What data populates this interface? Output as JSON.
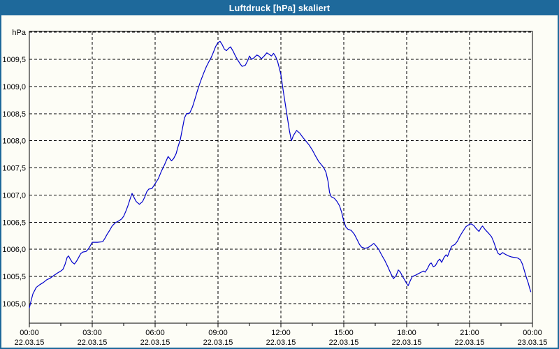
{
  "window": {
    "title": "Luftdruck [hPa] skaliert"
  },
  "colors": {
    "frame": "#1E699B",
    "titlebar_bg": "#1E699B",
    "title_text": "#FFFFFF",
    "panel_bg": "#FDFDF6",
    "line": "#0000CC",
    "grid": "#000000",
    "label_text": "#000000"
  },
  "chart_data": {
    "type": "line",
    "title": "Luftdruck [hPa] skaliert",
    "ylabel": "hPa",
    "unit_label": "hPa",
    "grid": true,
    "legend": "none",
    "ylim": [
      1004.64,
      1010.0
    ],
    "xlim_hours": [
      0,
      24
    ],
    "y_ticks": [
      {
        "v": 1010.0,
        "label": "hPa"
      },
      {
        "v": 1009.5,
        "label": "1009,5"
      },
      {
        "v": 1009.0,
        "label": "1009,0"
      },
      {
        "v": 1008.5,
        "label": "1008,5"
      },
      {
        "v": 1008.0,
        "label": "1008,0"
      },
      {
        "v": 1007.5,
        "label": "1007,5"
      },
      {
        "v": 1007.0,
        "label": "1007,0"
      },
      {
        "v": 1006.5,
        "label": "1006,5"
      },
      {
        "v": 1006.0,
        "label": "1006,0"
      },
      {
        "v": 1005.5,
        "label": "1005,5"
      },
      {
        "v": 1005.0,
        "label": "1005,0"
      }
    ],
    "x_ticks": [
      {
        "h": 0,
        "time": "00:00",
        "date": "22.03.15"
      },
      {
        "h": 3,
        "time": "03:00",
        "date": "22.03.15"
      },
      {
        "h": 6,
        "time": "06:00",
        "date": "22.03.15"
      },
      {
        "h": 9,
        "time": "09:00",
        "date": "22.03.15"
      },
      {
        "h": 12,
        "time": "12:00",
        "date": "22.03.15"
      },
      {
        "h": 15,
        "time": "15:00",
        "date": "22.03.15"
      },
      {
        "h": 18,
        "time": "18:00",
        "date": "22.03.15"
      },
      {
        "h": 21,
        "time": "21:00",
        "date": "22.03.15"
      },
      {
        "h": 24,
        "time": "00:00",
        "date": "23.03.15"
      }
    ],
    "minor_tick_hours": [
      1.5,
      4.5,
      7.5,
      10.5,
      13.5,
      16.5,
      19.5,
      22.5
    ],
    "series": [
      {
        "name": "Luftdruck",
        "points": [
          [
            0.0,
            1004.92
          ],
          [
            0.08,
            1005.05
          ],
          [
            0.17,
            1005.18
          ],
          [
            0.33,
            1005.3
          ],
          [
            0.5,
            1005.35
          ],
          [
            0.67,
            1005.39
          ],
          [
            0.83,
            1005.44
          ],
          [
            1.0,
            1005.47
          ],
          [
            1.17,
            1005.52
          ],
          [
            1.33,
            1005.56
          ],
          [
            1.5,
            1005.6
          ],
          [
            1.6,
            1005.63
          ],
          [
            1.7,
            1005.72
          ],
          [
            1.8,
            1005.85
          ],
          [
            1.87,
            1005.88
          ],
          [
            1.95,
            1005.82
          ],
          [
            2.05,
            1005.76
          ],
          [
            2.15,
            1005.73
          ],
          [
            2.25,
            1005.78
          ],
          [
            2.35,
            1005.85
          ],
          [
            2.45,
            1005.92
          ],
          [
            2.55,
            1005.95
          ],
          [
            2.7,
            1005.96
          ],
          [
            2.8,
            1006.0
          ],
          [
            2.9,
            1006.06
          ],
          [
            3.0,
            1006.13
          ],
          [
            3.25,
            1006.13
          ],
          [
            3.5,
            1006.14
          ],
          [
            3.6,
            1006.2
          ],
          [
            3.7,
            1006.27
          ],
          [
            3.83,
            1006.35
          ],
          [
            3.95,
            1006.43
          ],
          [
            4.1,
            1006.49
          ],
          [
            4.25,
            1006.52
          ],
          [
            4.4,
            1006.56
          ],
          [
            4.5,
            1006.61
          ],
          [
            4.6,
            1006.7
          ],
          [
            4.7,
            1006.8
          ],
          [
            4.8,
            1006.92
          ],
          [
            4.9,
            1007.03
          ],
          [
            5.0,
            1006.95
          ],
          [
            5.1,
            1006.88
          ],
          [
            5.25,
            1006.83
          ],
          [
            5.4,
            1006.88
          ],
          [
            5.5,
            1006.96
          ],
          [
            5.6,
            1007.06
          ],
          [
            5.7,
            1007.11
          ],
          [
            5.85,
            1007.12
          ],
          [
            5.95,
            1007.18
          ],
          [
            6.05,
            1007.24
          ],
          [
            6.15,
            1007.3
          ],
          [
            6.3,
            1007.44
          ],
          [
            6.45,
            1007.56
          ],
          [
            6.55,
            1007.65
          ],
          [
            6.62,
            1007.71
          ],
          [
            6.7,
            1007.67
          ],
          [
            6.78,
            1007.63
          ],
          [
            6.88,
            1007.67
          ],
          [
            7.0,
            1007.76
          ],
          [
            7.1,
            1007.9
          ],
          [
            7.2,
            1008.02
          ],
          [
            7.3,
            1008.22
          ],
          [
            7.4,
            1008.42
          ],
          [
            7.5,
            1008.5
          ],
          [
            7.65,
            1008.51
          ],
          [
            7.78,
            1008.62
          ],
          [
            7.9,
            1008.77
          ],
          [
            8.0,
            1008.9
          ],
          [
            8.1,
            1009.02
          ],
          [
            8.2,
            1009.13
          ],
          [
            8.33,
            1009.26
          ],
          [
            8.45,
            1009.37
          ],
          [
            8.57,
            1009.46
          ],
          [
            8.67,
            1009.53
          ],
          [
            8.78,
            1009.63
          ],
          [
            8.88,
            1009.73
          ],
          [
            9.0,
            1009.81
          ],
          [
            9.1,
            1009.83
          ],
          [
            9.2,
            1009.77
          ],
          [
            9.3,
            1009.69
          ],
          [
            9.4,
            1009.66
          ],
          [
            9.5,
            1009.7
          ],
          [
            9.6,
            1009.73
          ],
          [
            9.72,
            1009.65
          ],
          [
            9.82,
            1009.57
          ],
          [
            9.92,
            1009.5
          ],
          [
            10.05,
            1009.42
          ],
          [
            10.15,
            1009.37
          ],
          [
            10.3,
            1009.39
          ],
          [
            10.42,
            1009.48
          ],
          [
            10.5,
            1009.56
          ],
          [
            10.6,
            1009.5
          ],
          [
            10.72,
            1009.53
          ],
          [
            10.85,
            1009.58
          ],
          [
            10.95,
            1009.56
          ],
          [
            11.07,
            1009.51
          ],
          [
            11.2,
            1009.56
          ],
          [
            11.33,
            1009.62
          ],
          [
            11.45,
            1009.59
          ],
          [
            11.55,
            1009.56
          ],
          [
            11.65,
            1009.61
          ],
          [
            11.75,
            1009.55
          ],
          [
            11.85,
            1009.45
          ],
          [
            11.95,
            1009.3
          ],
          [
            12.0,
            1009.22
          ],
          [
            12.1,
            1008.95
          ],
          [
            12.2,
            1008.7
          ],
          [
            12.3,
            1008.45
          ],
          [
            12.4,
            1008.2
          ],
          [
            12.5,
            1008.0
          ],
          [
            12.6,
            1008.1
          ],
          [
            12.75,
            1008.19
          ],
          [
            12.9,
            1008.14
          ],
          [
            13.05,
            1008.06
          ],
          [
            13.2,
            1007.99
          ],
          [
            13.35,
            1007.92
          ],
          [
            13.5,
            1007.83
          ],
          [
            13.65,
            1007.72
          ],
          [
            13.8,
            1007.62
          ],
          [
            13.95,
            1007.55
          ],
          [
            14.05,
            1007.5
          ],
          [
            14.15,
            1007.42
          ],
          [
            14.25,
            1007.25
          ],
          [
            14.32,
            1007.05
          ],
          [
            14.4,
            1006.97
          ],
          [
            14.55,
            1006.94
          ],
          [
            14.68,
            1006.88
          ],
          [
            14.8,
            1006.8
          ],
          [
            14.9,
            1006.68
          ],
          [
            15.0,
            1006.52
          ],
          [
            15.1,
            1006.41
          ],
          [
            15.2,
            1006.37
          ],
          [
            15.35,
            1006.35
          ],
          [
            15.5,
            1006.28
          ],
          [
            15.62,
            1006.19
          ],
          [
            15.75,
            1006.09
          ],
          [
            15.85,
            1006.04
          ],
          [
            16.0,
            1006.02
          ],
          [
            16.15,
            1006.03
          ],
          [
            16.3,
            1006.07
          ],
          [
            16.43,
            1006.11
          ],
          [
            16.55,
            1006.06
          ],
          [
            16.68,
            1005.99
          ],
          [
            16.8,
            1005.9
          ],
          [
            16.95,
            1005.8
          ],
          [
            17.1,
            1005.68
          ],
          [
            17.25,
            1005.55
          ],
          [
            17.37,
            1005.46
          ],
          [
            17.5,
            1005.52
          ],
          [
            17.6,
            1005.62
          ],
          [
            17.7,
            1005.58
          ],
          [
            17.8,
            1005.5
          ],
          [
            17.9,
            1005.44
          ],
          [
            18.0,
            1005.37
          ],
          [
            18.07,
            1005.33
          ],
          [
            18.17,
            1005.42
          ],
          [
            18.27,
            1005.5
          ],
          [
            18.4,
            1005.52
          ],
          [
            18.55,
            1005.55
          ],
          [
            18.7,
            1005.58
          ],
          [
            18.8,
            1005.6
          ],
          [
            18.88,
            1005.58
          ],
          [
            19.0,
            1005.65
          ],
          [
            19.1,
            1005.73
          ],
          [
            19.17,
            1005.75
          ],
          [
            19.27,
            1005.68
          ],
          [
            19.37,
            1005.7
          ],
          [
            19.5,
            1005.79
          ],
          [
            19.58,
            1005.82
          ],
          [
            19.67,
            1005.76
          ],
          [
            19.78,
            1005.85
          ],
          [
            19.88,
            1005.9
          ],
          [
            19.95,
            1005.87
          ],
          [
            20.05,
            1005.97
          ],
          [
            20.15,
            1006.06
          ],
          [
            20.3,
            1006.09
          ],
          [
            20.42,
            1006.15
          ],
          [
            20.55,
            1006.25
          ],
          [
            20.68,
            1006.33
          ],
          [
            20.83,
            1006.42
          ],
          [
            20.95,
            1006.45
          ],
          [
            21.07,
            1006.47
          ],
          [
            21.2,
            1006.44
          ],
          [
            21.32,
            1006.38
          ],
          [
            21.45,
            1006.33
          ],
          [
            21.55,
            1006.4
          ],
          [
            21.62,
            1006.43
          ],
          [
            21.75,
            1006.36
          ],
          [
            21.9,
            1006.3
          ],
          [
            22.05,
            1006.23
          ],
          [
            22.15,
            1006.14
          ],
          [
            22.25,
            1006.03
          ],
          [
            22.35,
            1005.93
          ],
          [
            22.45,
            1005.9
          ],
          [
            22.58,
            1005.94
          ],
          [
            22.7,
            1005.91
          ],
          [
            22.85,
            1005.88
          ],
          [
            23.0,
            1005.86
          ],
          [
            23.15,
            1005.85
          ],
          [
            23.3,
            1005.84
          ],
          [
            23.42,
            1005.81
          ],
          [
            23.52,
            1005.73
          ],
          [
            23.62,
            1005.6
          ],
          [
            23.72,
            1005.47
          ],
          [
            23.8,
            1005.38
          ],
          [
            23.87,
            1005.28
          ],
          [
            23.92,
            1005.22
          ]
        ]
      }
    ]
  }
}
